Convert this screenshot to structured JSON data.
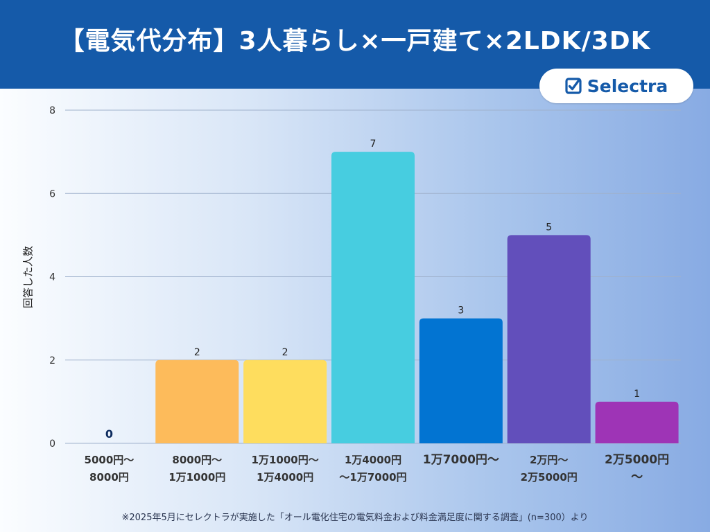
{
  "header": {
    "title": "【電気代分布】3人暮らし×一戸建て×2LDK/3DK",
    "logo_text": "Selectra",
    "logo_icon": "check-square-icon"
  },
  "colors": {
    "header": "#155aa9",
    "gridline": "#9fb1cc",
    "bar_colors": [
      "#0d2b5e",
      "#fdbb5b",
      "#fedd5e",
      "#47cde0",
      "#0274d2",
      "#624fbb",
      "#9e34b6"
    ]
  },
  "chart_data": {
    "type": "bar",
    "title": "【電気代分布】3人暮らし×一戸建て×2LDK/3DK",
    "xlabel": "",
    "ylabel": "回答した人数",
    "ylim": [
      0,
      8
    ],
    "yticks": [
      "0",
      "2",
      "4",
      "6",
      "8"
    ],
    "grid": true,
    "categories": [
      "5000円〜\n8000円",
      "8000円〜\n1万1000円",
      "1万1000円〜\n1万4000円",
      "1万4000円\n〜1万7000円",
      "1万7000円〜",
      "2万円〜\n2万5000円",
      "2万5000円\n〜"
    ],
    "values": [
      0,
      2,
      2,
      7,
      3,
      5,
      1
    ],
    "data_labels": [
      "0",
      "2",
      "2",
      "7",
      "3",
      "5",
      "1"
    ]
  },
  "footnote": "※2025年5月にセレクトラが実施した「オール電化住宅の電気料金および料金満足度に関する調査」(n=300）より"
}
